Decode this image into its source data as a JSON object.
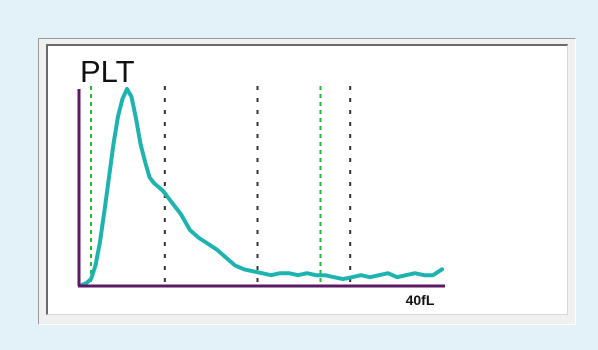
{
  "chart_data": {
    "type": "line",
    "title": "PLT",
    "xlabel": "40fL",
    "ylabel": "",
    "xlim": [
      0,
      40
    ],
    "ylim": [
      0,
      100
    ],
    "grid": false,
    "series": [
      {
        "color": "#1fb3b0",
        "x": [
          0.0,
          0.5,
          1.0,
          1.5,
          2.0,
          2.5,
          3.0,
          3.5,
          4.0,
          4.5,
          5.0,
          5.5,
          6.0,
          6.5,
          7.0,
          7.5,
          8.0,
          8.5,
          9.0,
          9.5,
          10.0,
          11.0,
          12.0,
          13.0,
          14.0,
          15.0,
          16.0,
          17.0,
          18.0,
          19.0,
          20.0,
          21.0,
          22.0,
          23.0,
          24.0,
          25.0,
          26.0,
          27.0,
          28.0,
          29.0,
          30.0,
          31.0,
          32.0,
          33.0,
          34.0,
          35.0,
          36.0,
          37.0,
          38.0,
          39.0,
          40.0
        ],
        "values": [
          0,
          1,
          3,
          10,
          22,
          38,
          55,
          72,
          86,
          95,
          100,
          96,
          85,
          72,
          63,
          55,
          52,
          50,
          48,
          45,
          42,
          36,
          28,
          24,
          21,
          18,
          14,
          10,
          8,
          7,
          6,
          5,
          6,
          6,
          5,
          6,
          5,
          5,
          4,
          3,
          4,
          5,
          4,
          5,
          6,
          4,
          5,
          6,
          5,
          5,
          8
        ]
      }
    ],
    "vlines": [
      {
        "x": 1.0,
        "color": "#22bb33",
        "style": "dashed"
      },
      {
        "x": 9.2,
        "color": "#333333",
        "style": "dashed"
      },
      {
        "x": 19.5,
        "color": "#333333",
        "style": "dashed"
      },
      {
        "x": 26.5,
        "color": "#22bb33",
        "style": "dashed"
      },
      {
        "x": 29.8,
        "color": "#333333",
        "style": "dashed"
      }
    ],
    "axis_color": "#5c1a66"
  }
}
